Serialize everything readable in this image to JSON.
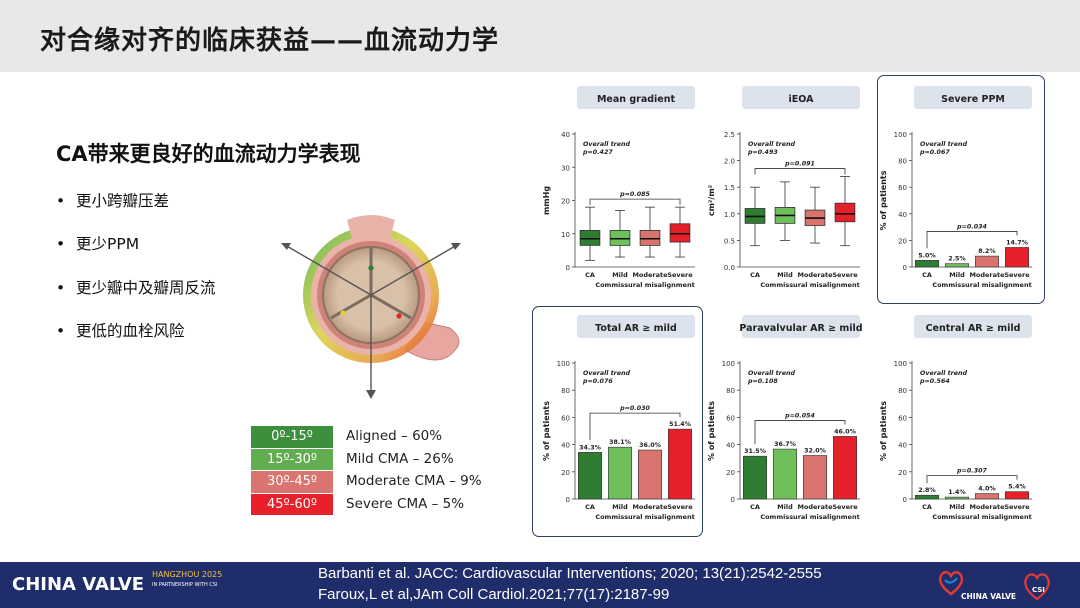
{
  "header": {
    "title": "对合缘对齐的临床获益——血流动力学"
  },
  "left": {
    "subtitle": "CA带来更良好的血流动力学表现",
    "bullets": [
      "更小跨瓣压差",
      "更少PPM",
      "更少瓣中及瓣周反流",
      "更低的血栓风险"
    ]
  },
  "legend": {
    "items": [
      {
        "range": "0º-15º",
        "label": "Aligned – 60%",
        "color": "#3d8f3d"
      },
      {
        "range": "15º-30º",
        "label": "Mild CMA – 26%",
        "color": "#62ad51"
      },
      {
        "range": "30º-45º",
        "label": "Moderate CMA – 9%",
        "color": "#d97470"
      },
      {
        "range": "45º-60º",
        "label": "Severe CMA – 5%",
        "color": "#e8202a"
      }
    ]
  },
  "colors": {
    "ca": "#2e7d32",
    "mild": "#6fbf5a",
    "moderate": "#d9736d",
    "severe": "#e5202a",
    "panel_header": "#dde3ec"
  },
  "chart_data": [
    {
      "type": "boxplot",
      "title": "Mean gradient",
      "ylabel": "mmHg",
      "ylim": [
        0,
        40
      ],
      "yticks": [
        0,
        10,
        20,
        30,
        40
      ],
      "categories": [
        "CA",
        "Mild",
        "Moderate",
        "Severe"
      ],
      "xlabel": "Commissural misalignment",
      "annotations": [
        "Overall trend",
        "p=0.427",
        "p=0.085"
      ],
      "boxes": [
        {
          "min": 2,
          "q1": 6.5,
          "median": 8.5,
          "q3": 11,
          "max": 18
        },
        {
          "min": 3,
          "q1": 6.5,
          "median": 8.5,
          "q3": 11,
          "max": 17
        },
        {
          "min": 3,
          "q1": 6.5,
          "median": 8.5,
          "q3": 11,
          "max": 18
        },
        {
          "min": 3,
          "q1": 7.5,
          "median": 10,
          "q3": 13,
          "max": 18
        }
      ]
    },
    {
      "type": "boxplot",
      "title": "iEOA",
      "ylabel": "cm²/m²",
      "ylim": [
        0,
        2.5
      ],
      "yticks": [
        0,
        0.5,
        1.0,
        1.5,
        2.0,
        2.5
      ],
      "categories": [
        "CA",
        "Mild",
        "Moderate",
        "Severe"
      ],
      "xlabel": "Commissural misalignment",
      "annotations": [
        "Overall trend",
        "p=0.493",
        "p=0.091"
      ],
      "boxes": [
        {
          "min": 0.4,
          "q1": 0.82,
          "median": 0.95,
          "q3": 1.1,
          "max": 1.5
        },
        {
          "min": 0.5,
          "q1": 0.82,
          "median": 0.97,
          "q3": 1.12,
          "max": 1.6
        },
        {
          "min": 0.45,
          "q1": 0.78,
          "median": 0.92,
          "q3": 1.07,
          "max": 1.5
        },
        {
          "min": 0.4,
          "q1": 0.85,
          "median": 1.0,
          "q3": 1.2,
          "max": 1.7
        }
      ]
    },
    {
      "type": "bar",
      "title": "Severe PPM",
      "ylabel": "% of patients",
      "ylim": [
        0,
        100
      ],
      "yticks": [
        0,
        20,
        40,
        60,
        80,
        100
      ],
      "categories": [
        "CA",
        "Mild",
        "Moderate",
        "Severe"
      ],
      "values": [
        5.0,
        2.5,
        8.2,
        14.7
      ],
      "value_labels": [
        "5.0%",
        "2.5%",
        "8.2%",
        "14.7%"
      ],
      "xlabel": "Commissural misalignment",
      "annotations": [
        "Overall trend",
        "p=0.067",
        "p=0.034"
      ],
      "highlighted": true
    },
    {
      "type": "bar",
      "title": "Total AR ≥ mild",
      "ylabel": "% of patients",
      "ylim": [
        0,
        100
      ],
      "yticks": [
        0,
        20,
        40,
        60,
        80,
        100
      ],
      "categories": [
        "CA",
        "Mild",
        "Moderate",
        "Severe"
      ],
      "values": [
        34.3,
        38.1,
        36.0,
        51.4
      ],
      "value_labels": [
        "34.3%",
        "38.1%",
        "36.0%",
        "51.4%"
      ],
      "xlabel": "Commissural misalignment",
      "annotations": [
        "Overall trend",
        "p=0.076",
        "p=0.030"
      ],
      "highlighted": true
    },
    {
      "type": "bar",
      "title": "Paravalvular AR ≥ mild",
      "ylabel": "% of patients",
      "ylim": [
        0,
        100
      ],
      "yticks": [
        0,
        20,
        40,
        60,
        80,
        100
      ],
      "categories": [
        "CA",
        "Mild",
        "Moderate",
        "Severe"
      ],
      "values": [
        31.5,
        36.7,
        32.0,
        46.0
      ],
      "value_labels": [
        "31.5%",
        "36.7%",
        "32.0%",
        "46.0%"
      ],
      "xlabel": "Commissural misalignment",
      "annotations": [
        "Overall trend",
        "p=0.108",
        "p=0.054"
      ],
      "highlighted": false
    },
    {
      "type": "bar",
      "title": "Central AR ≥ mild",
      "ylabel": "% of patients",
      "ylim": [
        0,
        100
      ],
      "yticks": [
        0,
        20,
        40,
        60,
        80,
        100
      ],
      "categories": [
        "CA",
        "Mild",
        "Moderate",
        "Severe"
      ],
      "values": [
        2.8,
        1.4,
        4.0,
        5.4
      ],
      "value_labels": [
        "2.8%",
        "1.4%",
        "4.0%",
        "5.4%"
      ],
      "xlabel": "Commissural misalignment",
      "annotations": [
        "Overall trend",
        "p=0.564",
        "p=0.307"
      ],
      "highlighted": false
    }
  ],
  "footer": {
    "logo_text": "CHINA VALVE",
    "logo_sub_1": "HANGZHOU 2025",
    "logo_sub_2": "IN PARTNERSHIP WITH CSI",
    "citation_1": "Barbanti et al. JACC: Cardiovascular Interventions; 2020; 13(21):2542-2555",
    "citation_2": "Faroux,L et al,JAm Coll Cardiol.2021;77(17):2187-99",
    "right_logo_text": "CHINA VALVE"
  }
}
